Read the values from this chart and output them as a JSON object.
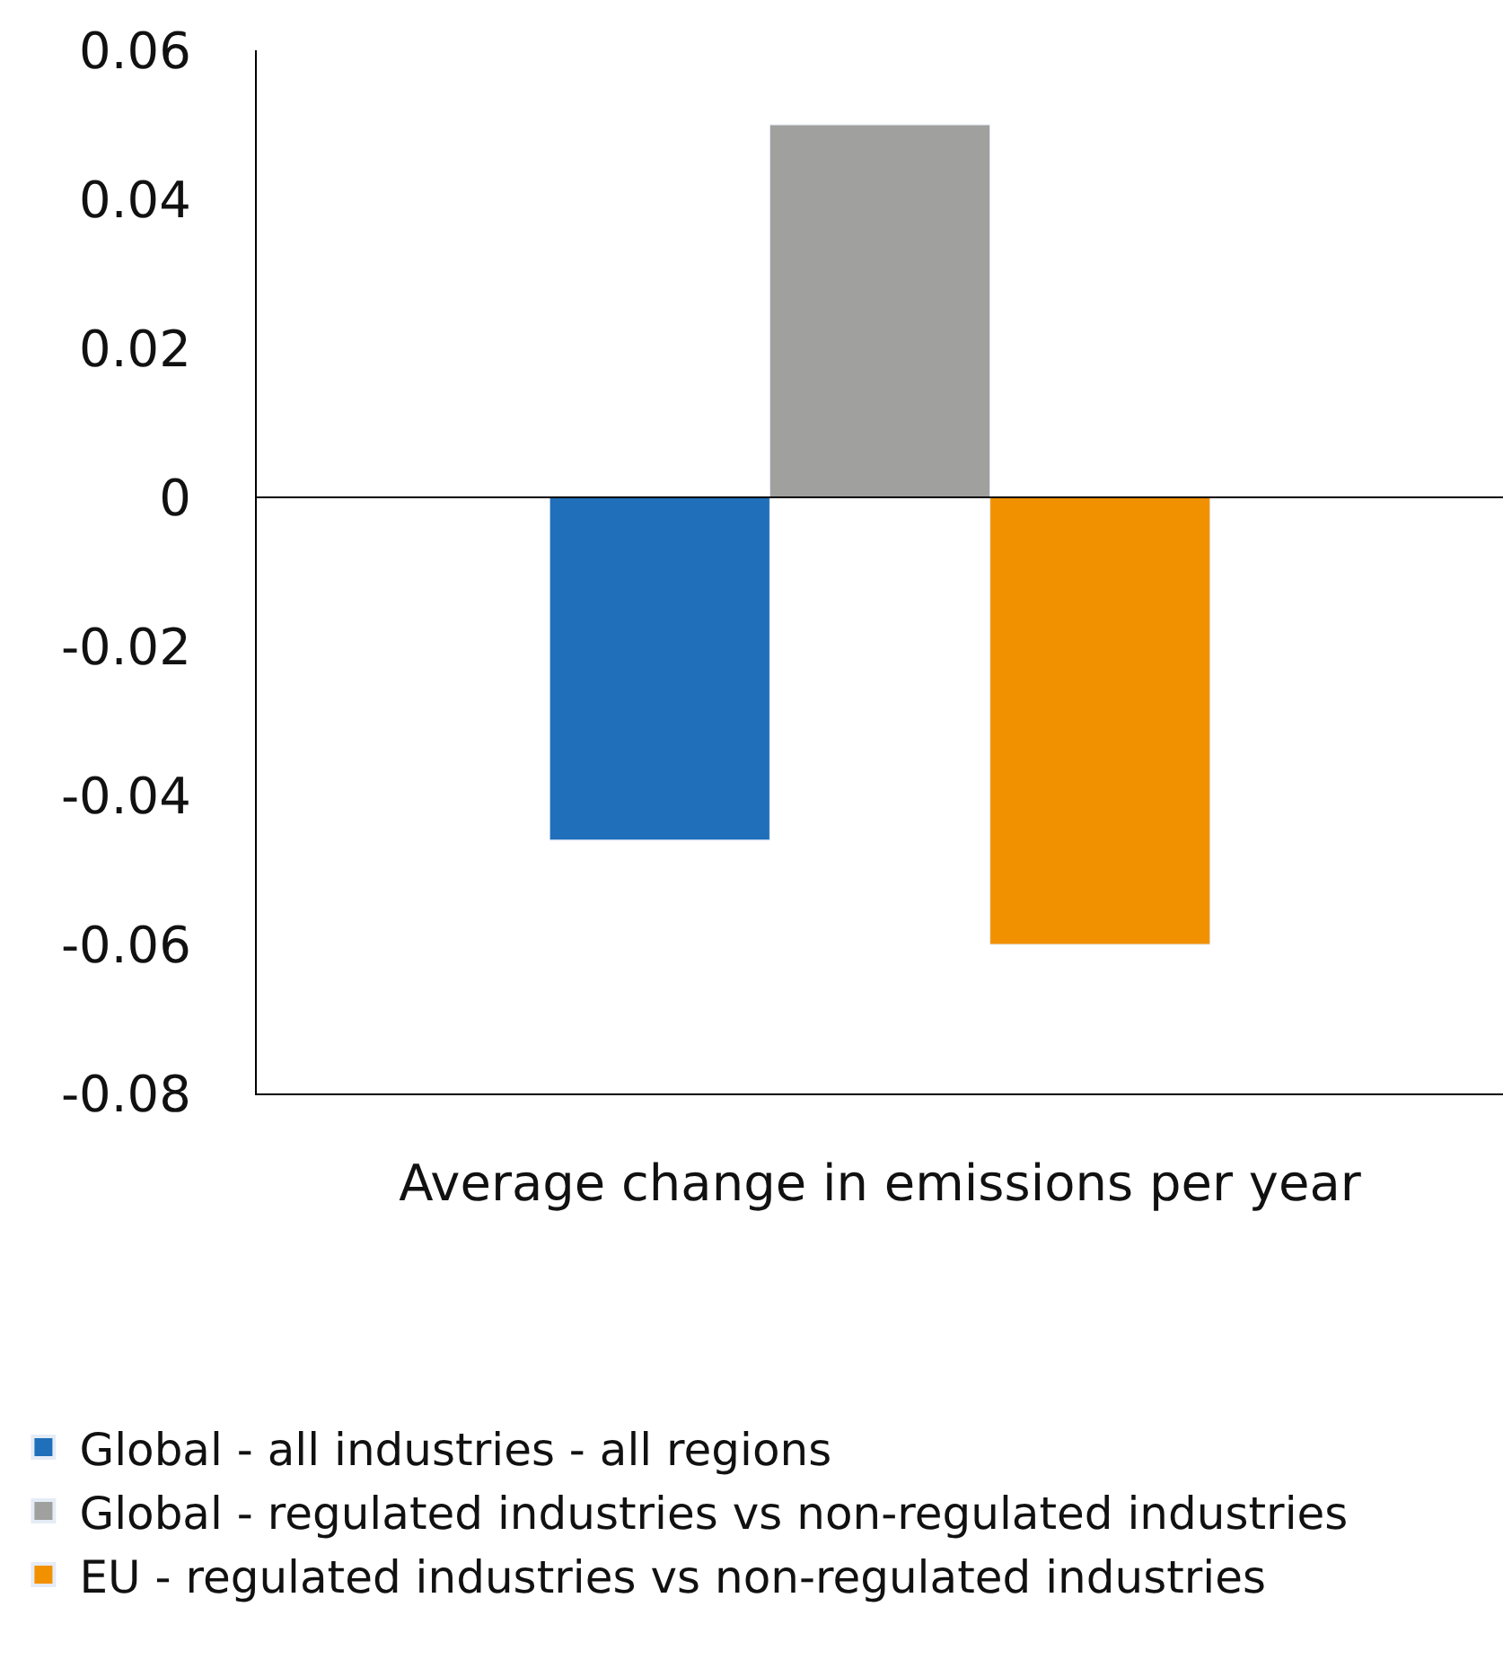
{
  "chart_data": {
    "type": "bar",
    "categories": [
      "Average change in emissions per year"
    ],
    "series": [
      {
        "name": "Global - all industries - all regions",
        "color": "#1f6fba",
        "values": [
          -0.046
        ]
      },
      {
        "name": "Global - regulated industries vs non-regulated industries",
        "color": "#a0a09f",
        "values": [
          0.05
        ]
      },
      {
        "name": "EU - regulated industries vs non-regulated industries",
        "color": "#f29100",
        "values": [
          -0.06
        ]
      }
    ],
    "ylim": [
      -0.08,
      0.06
    ],
    "yticks": [
      -0.08,
      -0.06,
      -0.04,
      -0.02,
      0,
      0.02,
      0.04,
      0.06
    ],
    "ref_lines": [
      {
        "axis": "y",
        "value": 0,
        "color": "#000000"
      }
    ],
    "legend": "bottom"
  }
}
